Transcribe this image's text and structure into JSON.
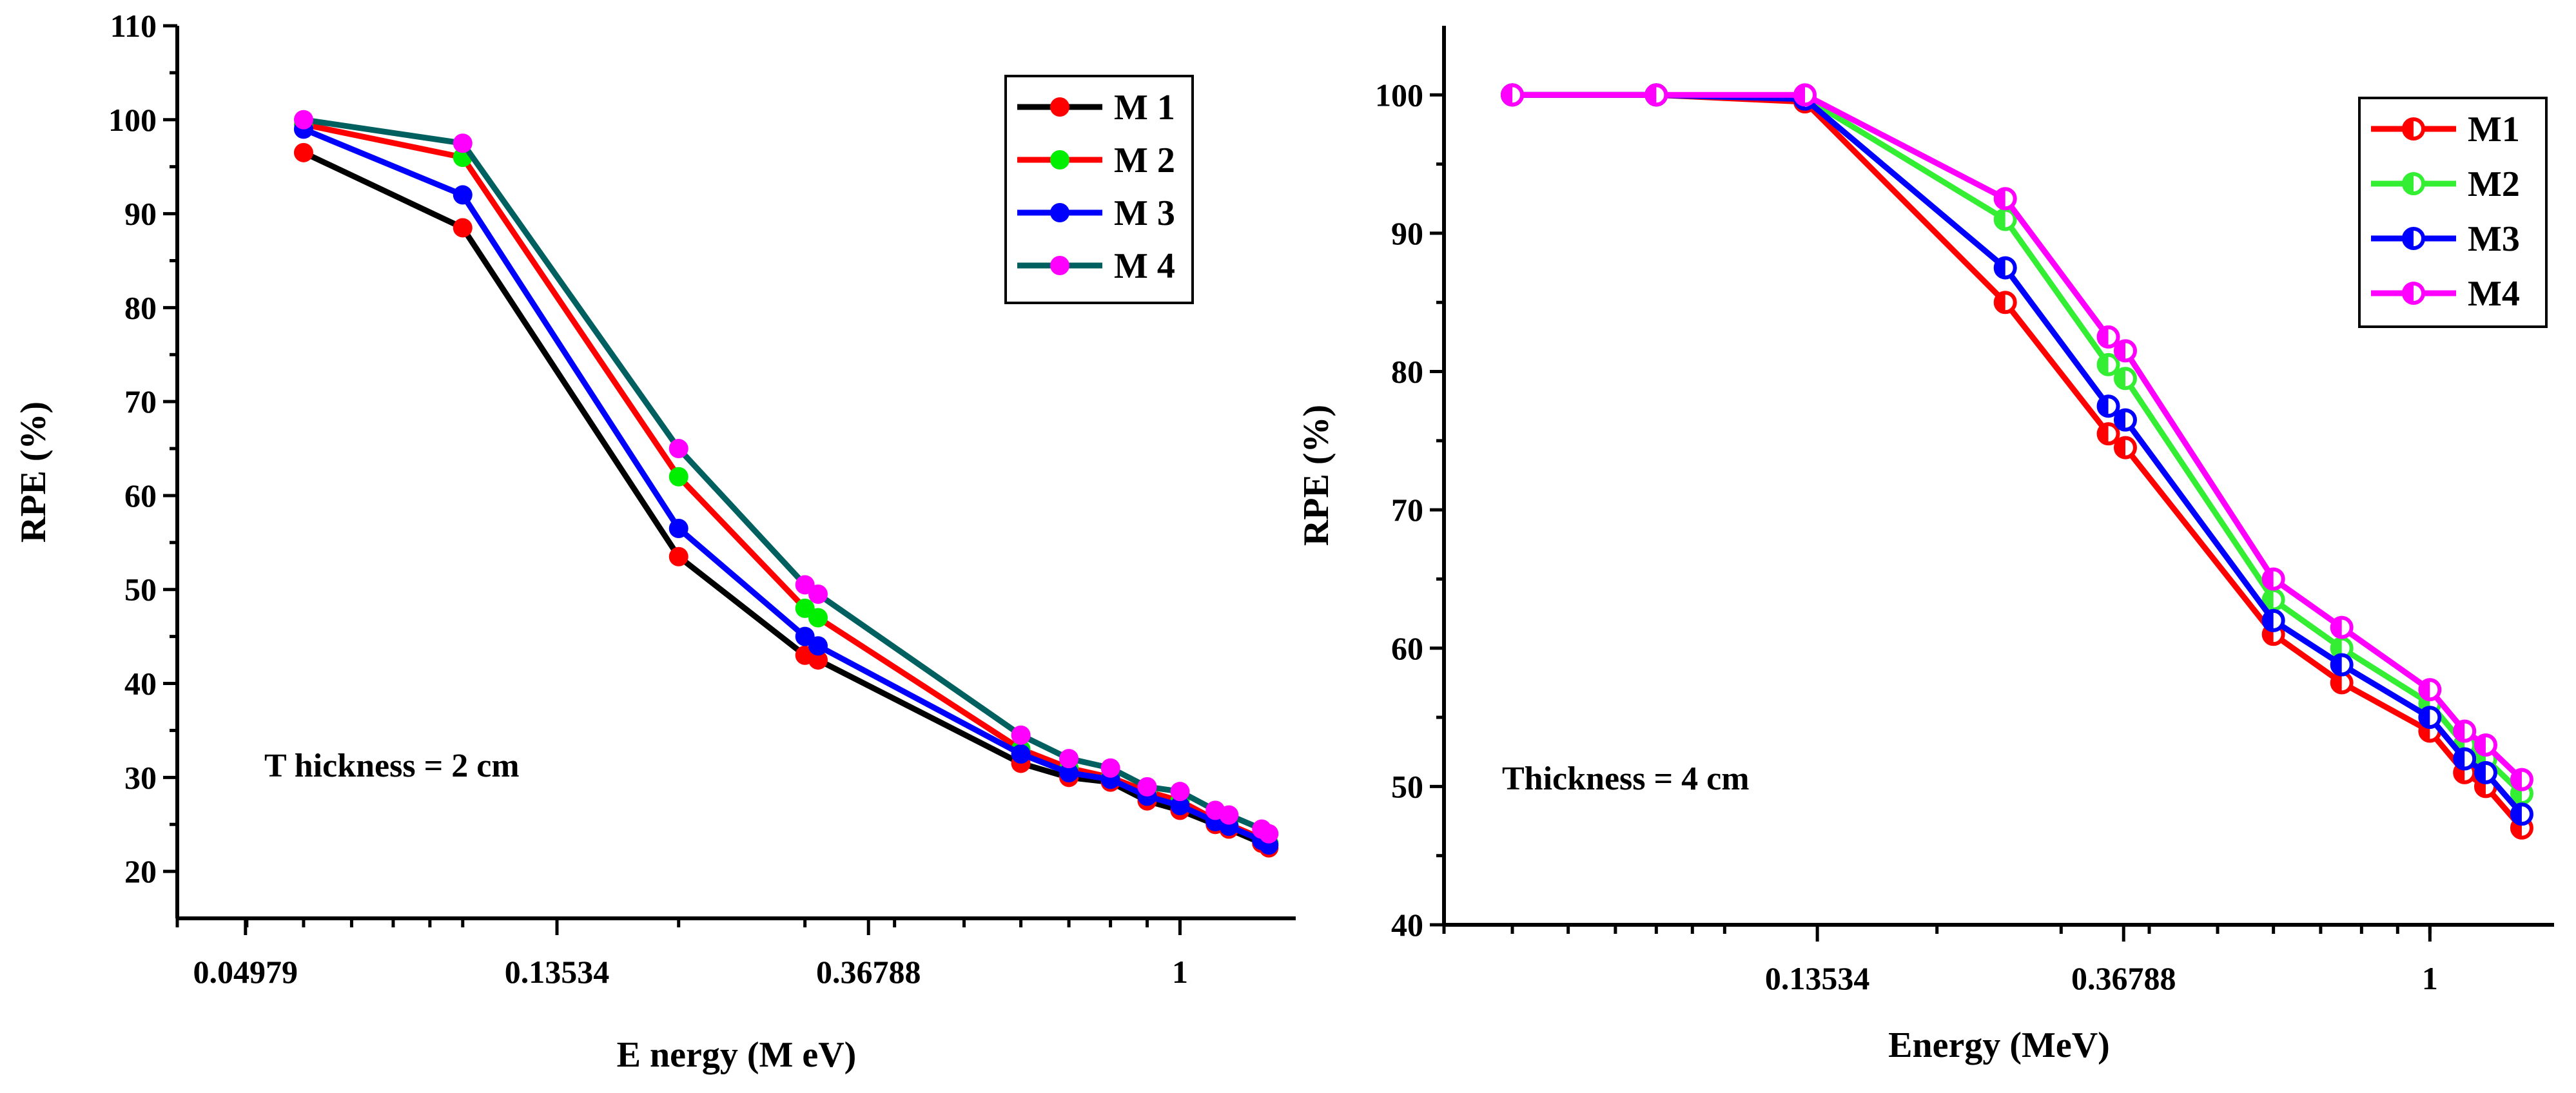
{
  "chart_data": [
    {
      "type": "line",
      "xscale": "log",
      "xlabel": "E nergy (M eV)",
      "ylabel": "RPE (%)",
      "xlim": [
        0.04,
        1.45
      ],
      "ylim": [
        15,
        110
      ],
      "x_ticks": [
        0.04979,
        0.13534,
        0.36788,
        1
      ],
      "x_tick_labels": [
        "0.04979",
        "0.13534",
        "0.36788",
        "1"
      ],
      "y_ticks": [
        20,
        30,
        40,
        50,
        60,
        70,
        80,
        90,
        100,
        110
      ],
      "y_tick_labels": [
        "20",
        "30",
        "40",
        "50",
        "60",
        "70",
        "80",
        "90",
        "100",
        "110"
      ],
      "annotation": "T hickness = 2 cm",
      "legend_position": "top-right",
      "marker": "filled-circle",
      "x": [
        0.06,
        0.1,
        0.2,
        0.3,
        0.3129,
        0.6,
        0.7,
        0.8,
        0.8999,
        1.0,
        1.12,
        1.17,
        1.3,
        1.33
      ],
      "series": [
        {
          "name": "M 1",
          "line_color": "#000000",
          "marker_color": "#ff0000",
          "values": [
            96.5,
            88.5,
            53.5,
            43.0,
            42.5,
            31.5,
            30.0,
            29.5,
            27.5,
            26.5,
            25.0,
            24.5,
            23.0,
            22.5
          ]
        },
        {
          "name": "M 2",
          "line_color": "#ff0000",
          "marker_color": "#00ee00",
          "values": [
            99.5,
            96.0,
            62.0,
            48.0,
            47.0,
            33.0,
            31.0,
            30.0,
            28.5,
            27.5,
            25.5,
            25.0,
            23.5,
            23.0
          ]
        },
        {
          "name": "M 3",
          "line_color": "#0000ff",
          "marker_color": "#0000ff",
          "values": [
            99.0,
            92.0,
            56.5,
            45.0,
            44.0,
            32.5,
            30.5,
            29.8,
            28.0,
            27.0,
            25.3,
            24.8,
            23.3,
            22.8
          ]
        },
        {
          "name": "M 4",
          "line_color": "#006060",
          "marker_color": "#ff00ff",
          "values": [
            100.0,
            97.5,
            65.0,
            50.5,
            49.5,
            34.5,
            32.0,
            31.0,
            29.0,
            28.5,
            26.5,
            26.0,
            24.5,
            24.0
          ]
        }
      ]
    },
    {
      "type": "line",
      "xscale": "log",
      "xlabel": "Energy (MeV)",
      "ylabel": "RPE (%)",
      "xlim": [
        0.04,
        1.5
      ],
      "ylim": [
        40,
        105
      ],
      "x_ticks": [
        0.13534,
        0.36788,
        1
      ],
      "x_tick_labels": [
        "0.13534",
        "0.36788",
        "1"
      ],
      "y_ticks": [
        40,
        50,
        60,
        70,
        80,
        90,
        100
      ],
      "y_tick_labels": [
        "40",
        "50",
        "60",
        "70",
        "80",
        "90",
        "100"
      ],
      "annotation": "Thickness = 4 cm",
      "legend_position": "top-right",
      "marker": "half-filled-circle",
      "x": [
        0.05,
        0.08,
        0.13,
        0.25,
        0.35,
        0.37,
        0.6,
        0.75,
        1.0,
        1.12,
        1.2,
        1.35
      ],
      "series": [
        {
          "name": "M1",
          "line_color": "#ff0000",
          "marker_color": "#ff0000",
          "values": [
            100,
            100,
            99.5,
            85.0,
            75.5,
            74.5,
            61.0,
            57.5,
            54.0,
            51.0,
            50.0,
            47.0
          ]
        },
        {
          "name": "M2",
          "line_color": "#33ee33",
          "marker_color": "#33ee33",
          "values": [
            100,
            100,
            99.8,
            91.0,
            80.5,
            79.5,
            63.5,
            60.0,
            56.0,
            53.0,
            52.0,
            49.5
          ]
        },
        {
          "name": "M3",
          "line_color": "#0000ff",
          "marker_color": "#0000ff",
          "values": [
            100,
            100,
            99.7,
            87.5,
            77.5,
            76.5,
            62.0,
            58.8,
            55.0,
            52.0,
            51.0,
            48.0
          ]
        },
        {
          "name": "M4",
          "line_color": "#ff00ff",
          "marker_color": "#ff00ff",
          "values": [
            100,
            100,
            100,
            92.5,
            82.5,
            81.5,
            65.0,
            61.5,
            57.0,
            54.0,
            53.0,
            50.5
          ]
        }
      ]
    }
  ]
}
